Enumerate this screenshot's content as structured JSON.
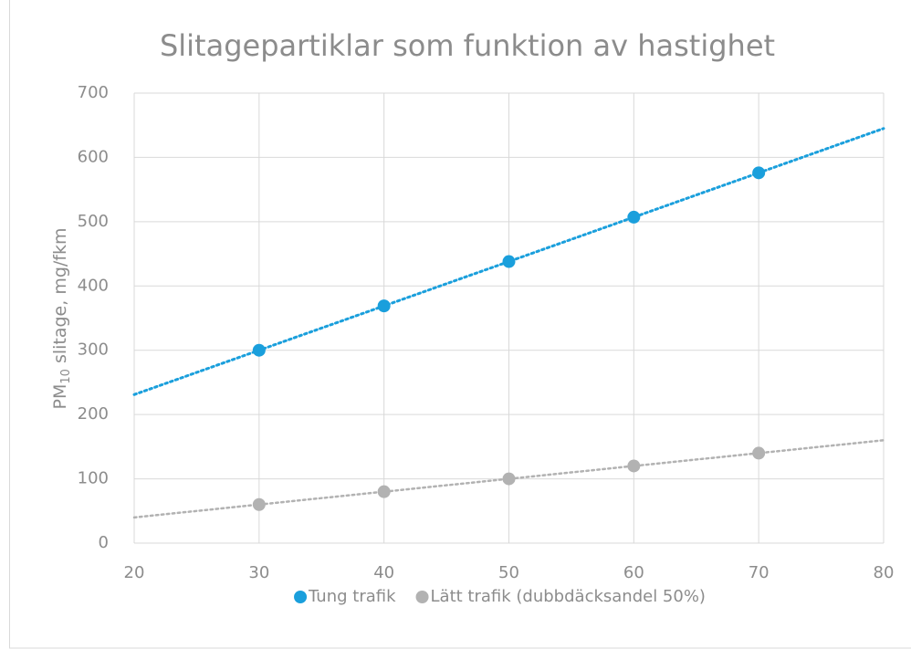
{
  "chart_data": {
    "type": "scatter",
    "title": "Slitagepartiklar som funktion av hastighet",
    "y_label_parts": [
      "PM",
      "10",
      " slitage, mg/fkm"
    ],
    "xlim": [
      20,
      80
    ],
    "xticks": [
      20,
      30,
      40,
      50,
      60,
      70,
      80
    ],
    "ylim": [
      0,
      700
    ],
    "yticks": [
      0,
      100,
      200,
      300,
      400,
      500,
      600,
      700
    ],
    "grid": true,
    "trendline": "linear",
    "legend": "bottom",
    "series": [
      {
        "name": "Tung trafik",
        "color": "#1a9fdc",
        "x": [
          30,
          40,
          50,
          60,
          70
        ],
        "values": [
          300,
          369,
          438,
          507,
          576
        ]
      },
      {
        "name": "Lätt trafik (dubbdäcksandel 50%)",
        "color": "#b2b2b2",
        "x": [
          30,
          40,
          50,
          60,
          70
        ],
        "values": [
          60,
          80,
          100,
          120,
          140
        ]
      }
    ]
  }
}
